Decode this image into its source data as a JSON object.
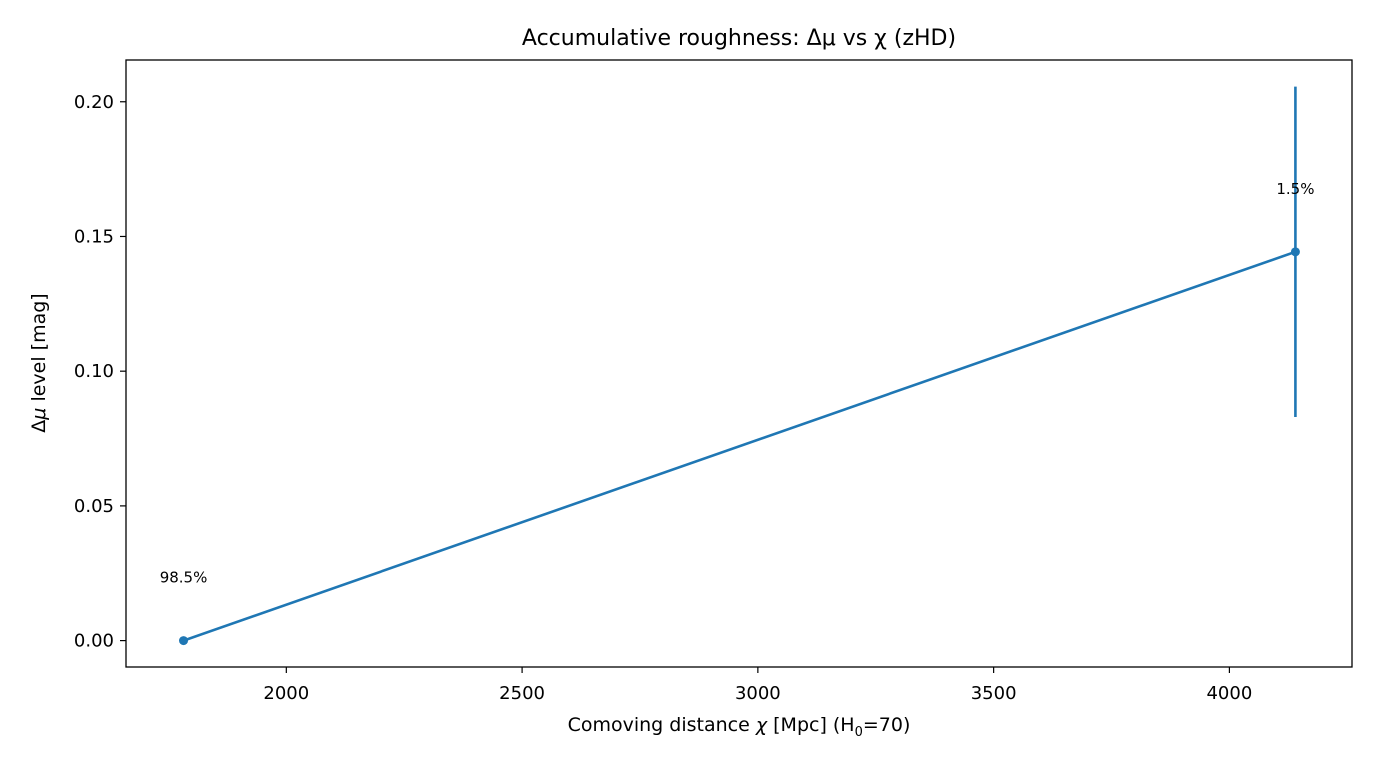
{
  "chart_data": {
    "type": "line",
    "title": "Accumulative roughness: Δμ vs χ (zHD)",
    "xlabel": {
      "prefix": "Comoving distance ",
      "var": "χ",
      "middle": "  [Mpc]  (H",
      "sub": "0",
      "suffix": "=70)"
    },
    "ylabel": {
      "prefix": "Δ",
      "var": "μ",
      "suffix": " level  [mag]"
    },
    "xlim": [
      1660,
      4260
    ],
    "ylim": [
      -0.0098,
      0.2155
    ],
    "xticks": [
      2000,
      2500,
      3000,
      3500,
      4000
    ],
    "xtick_labels": [
      "2000",
      "2500",
      "3000",
      "3500",
      "4000"
    ],
    "yticks": [
      0.0,
      0.05,
      0.1,
      0.15,
      0.2
    ],
    "ytick_labels": [
      "0.00",
      "0.05",
      "0.10",
      "0.15",
      "0.20"
    ],
    "grid": false,
    "series": [
      {
        "color": "#1f77b4",
        "points": [
          {
            "x": 1782,
            "y": 0.0,
            "yerr": 0.0,
            "label": "98.5%"
          },
          {
            "x": 4140,
            "y": 0.1443,
            "yerr": 0.0613,
            "label": "1.5%"
          }
        ]
      }
    ]
  }
}
